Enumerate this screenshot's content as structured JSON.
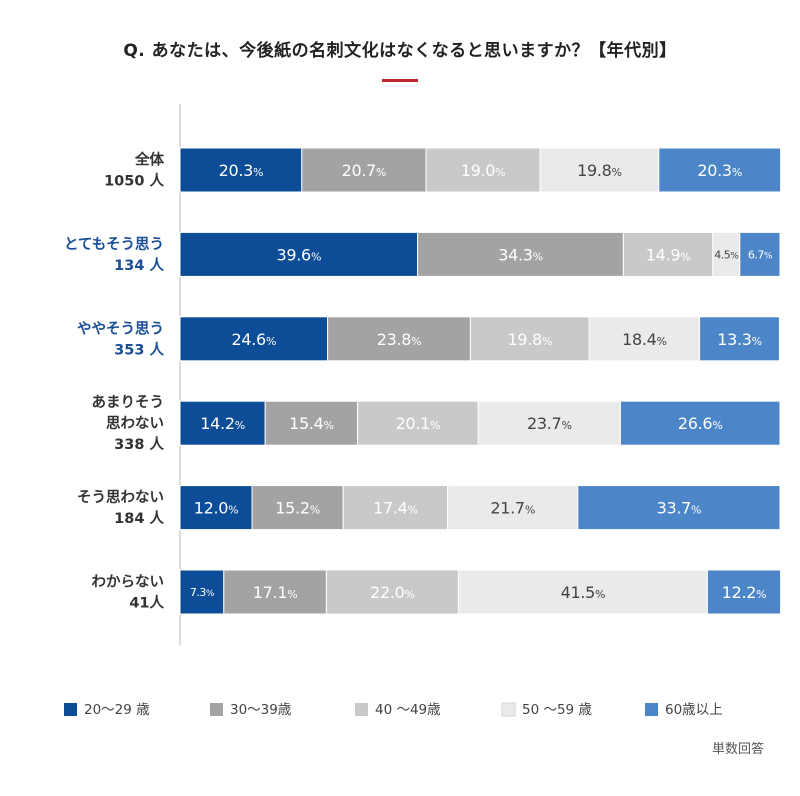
{
  "title": "Q. あなたは、今後紙の名刺文化はなくなると思いますか？【年代別】",
  "unit_note": "単数回答",
  "colors": {
    "accent_underline": "#c0282f",
    "label_default": "#333333",
    "label_highlight": "#1a4e96",
    "axis_line": "#bbbbbb"
  },
  "chart_data": {
    "type": "bar",
    "orientation": "horizontal",
    "stacked": true,
    "percent_suffix": "%",
    "xlim": [
      0,
      100
    ],
    "categories": [
      {
        "lines": [
          "全体",
          "1050 人"
        ],
        "highlight": false
      },
      {
        "lines": [
          "とてもそう思う",
          "134 人"
        ],
        "highlight": true
      },
      {
        "lines": [
          "ややそう思う",
          "353 人"
        ],
        "highlight": true
      },
      {
        "lines": [
          "あまりそう",
          "思わない",
          "338 人"
        ],
        "highlight": false
      },
      {
        "lines": [
          "そう思わない",
          "184 人"
        ],
        "highlight": false
      },
      {
        "lines": [
          "わからない",
          "41人"
        ],
        "highlight": false
      }
    ],
    "series": [
      {
        "name": "20～29 歳",
        "color": "#0d4c96",
        "text_color": "#ffffff",
        "values": [
          20.3,
          39.6,
          24.6,
          14.2,
          12.0,
          7.3
        ]
      },
      {
        "name": "30～39歳",
        "color": "#a3a3a3",
        "text_color": "#ffffff",
        "values": [
          20.7,
          34.3,
          23.8,
          15.4,
          15.2,
          17.1
        ]
      },
      {
        "name": "40 ～49歳",
        "color": "#c9c9c9",
        "text_color": "#ffffff",
        "values": [
          19.0,
          14.9,
          19.8,
          20.1,
          17.4,
          22.0
        ]
      },
      {
        "name": "50 ～59 歳",
        "color": "#eaeaea",
        "text_color": "#444444",
        "values": [
          19.8,
          4.5,
          18.4,
          23.7,
          21.7,
          41.5
        ]
      },
      {
        "name": "60歳以上",
        "color": "#4d86c8",
        "text_color": "#ffffff",
        "values": [
          20.3,
          6.7,
          13.3,
          26.6,
          33.7,
          12.2
        ]
      }
    ]
  }
}
